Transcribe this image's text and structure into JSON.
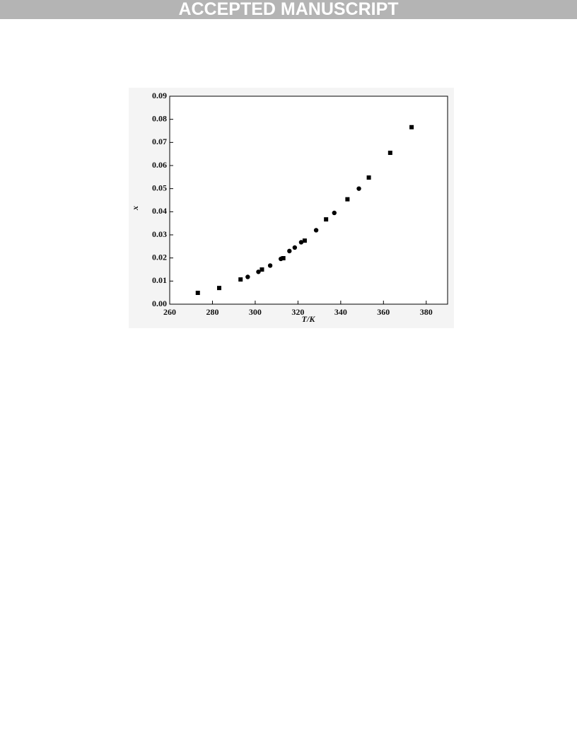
{
  "header": {
    "banner": "ACCEPTED MANUSCRIPT"
  },
  "chart_data": {
    "type": "scatter",
    "xlabel": "T/K",
    "ylabel": "x",
    "xlim": [
      260,
      390
    ],
    "ylim": [
      0,
      0.09
    ],
    "xticks": [
      260,
      280,
      300,
      320,
      340,
      360,
      380
    ],
    "yticks": [
      {
        "value": 0,
        "label": "0.00"
      },
      {
        "value": 0.01,
        "label": "0.01"
      },
      {
        "value": 0.02,
        "label": "0.02"
      },
      {
        "value": 0.03,
        "label": "0.03"
      },
      {
        "value": 0.04,
        "label": "0.04"
      },
      {
        "value": 0.05,
        "label": "0.05"
      },
      {
        "value": 0.06,
        "label": "0.06"
      },
      {
        "value": 0.07,
        "label": "0.07"
      },
      {
        "value": 0.08,
        "label": "0.08"
      },
      {
        "value": 0.09,
        "label": "0.09"
      }
    ],
    "series": [
      {
        "color": "#000000",
        "marker": "square",
        "x": [
          273.15,
          283.15,
          293.15,
          303.15,
          313.15,
          323.15,
          333.15,
          343.15,
          353.15,
          363.15,
          373.15
        ],
        "values": [
          0.0049,
          0.007,
          0.0107,
          0.015,
          0.0199,
          0.0275,
          0.0367,
          0.0454,
          0.0548,
          0.0655,
          0.0766
        ]
      },
      {
        "color": "#000000",
        "marker": "circle",
        "x": [
          296.5,
          301.5,
          307.0,
          312.0,
          316.0,
          318.5,
          321.5,
          328.5,
          337.0,
          348.5
        ],
        "values": [
          0.0118,
          0.014,
          0.0167,
          0.0196,
          0.023,
          0.0245,
          0.0268,
          0.032,
          0.0395,
          0.05
        ]
      }
    ]
  }
}
